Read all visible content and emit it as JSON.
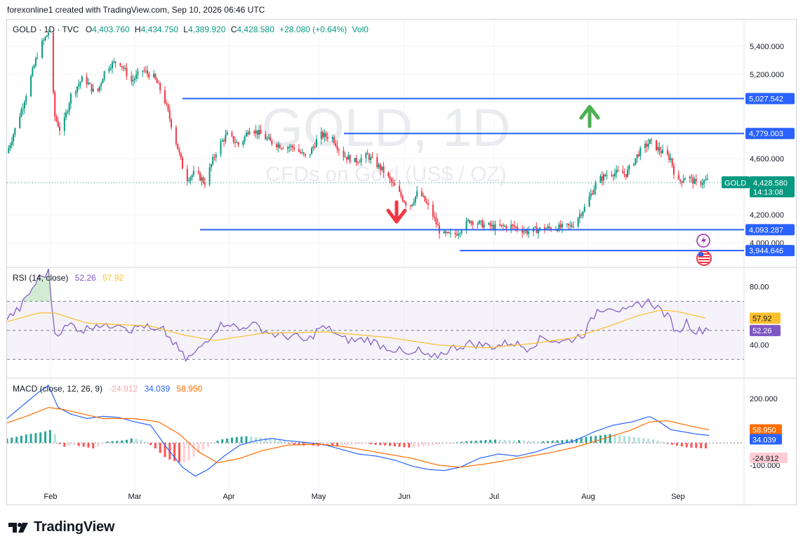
{
  "header": {
    "text": "forexonline1 created with TradingView.com, Sep 10, 2026 06:46 UTC"
  },
  "footer": {
    "brand": "TradingView"
  },
  "watermark": {
    "line1": "GOLD, 1D",
    "line2": "CFDs on Gold (US$ / OZ)"
  },
  "legend": {
    "symbol": "GOLD · 1D · TVC",
    "o_label": "O",
    "o_value": "4,403.760",
    "h_label": "H",
    "h_value": "4,434.750",
    "l_label": "L",
    "l_value": "4,389.920",
    "c_label": "C",
    "c_value": "4,428.580",
    "change": "+28.080 (+0.64%)",
    "vol": "Vol0"
  },
  "colors": {
    "up": "#089981",
    "down": "#f23645",
    "level_line": "#2962ff",
    "rsi": "#7e57c2",
    "rsi_ma": "#fbc02d",
    "macd": "#2962ff",
    "signal": "#ff6d00"
  },
  "chart_data": [
    {
      "type": "candlestick",
      "title": "GOLD, 1D",
      "x": [
        "Feb",
        "Mar",
        "Apr",
        "May",
        "Jun",
        "Jul",
        "Aug",
        "Sep"
      ],
      "ylim": [
        3850,
        5550
      ],
      "y_ticks": [
        "5,400.000",
        "5,200.000",
        "4,600.000",
        "4,200.000",
        "4,000.000"
      ],
      "horizontal_levels": [
        {
          "value": 5027.542,
          "label": "5,027.542"
        },
        {
          "value": 4779.003,
          "label": "4,779.003"
        },
        {
          "value": 4093.287,
          "label": "4,093.287"
        },
        {
          "value": 3944.646,
          "label": "3,944.646"
        }
      ],
      "last_price": {
        "symbol": "GOLD",
        "value": "4,428.580",
        "countdown": "14:13:08"
      },
      "annotations": [
        "arrow-up",
        "arrow-down"
      ],
      "close_path": [
        [
          0,
          4640
        ],
        [
          10,
          4980
        ],
        [
          20,
          5380
        ],
        [
          26,
          5500
        ],
        [
          30,
          4900
        ],
        [
          34,
          4780
        ],
        [
          40,
          5050
        ],
        [
          48,
          5180
        ],
        [
          56,
          5050
        ],
        [
          62,
          5250
        ],
        [
          70,
          5300
        ],
        [
          78,
          5150
        ],
        [
          85,
          5230
        ],
        [
          92,
          5180
        ],
        [
          98,
          5050
        ],
        [
          106,
          4720
        ],
        [
          112,
          4450
        ],
        [
          118,
          4500
        ],
        [
          124,
          4430
        ],
        [
          132,
          4680
        ],
        [
          138,
          4770
        ],
        [
          146,
          4690
        ],
        [
          152,
          4820
        ],
        [
          158,
          4780
        ],
        [
          165,
          4720
        ],
        [
          172,
          4690
        ],
        [
          180,
          4680
        ],
        [
          188,
          4600
        ],
        [
          196,
          4770
        ],
        [
          204,
          4750
        ],
        [
          210,
          4630
        ],
        [
          218,
          4580
        ],
        [
          226,
          4620
        ],
        [
          236,
          4510
        ],
        [
          246,
          4350
        ],
        [
          252,
          4250
        ],
        [
          258,
          4370
        ],
        [
          266,
          4220
        ],
        [
          272,
          4060
        ],
        [
          280,
          4050
        ],
        [
          290,
          4160
        ],
        [
          298,
          4130
        ],
        [
          306,
          4110
        ],
        [
          316,
          4120
        ],
        [
          326,
          4080
        ],
        [
          336,
          4100
        ],
        [
          348,
          4110
        ],
        [
          354,
          4120
        ],
        [
          362,
          4250
        ],
        [
          370,
          4440
        ],
        [
          378,
          4500
        ],
        [
          388,
          4490
        ],
        [
          396,
          4640
        ],
        [
          403,
          4720
        ],
        [
          410,
          4650
        ],
        [
          416,
          4600
        ],
        [
          420,
          4420
        ],
        [
          426,
          4480
        ],
        [
          432,
          4420
        ],
        [
          440,
          4450
        ]
      ],
      "session_days": 440
    },
    {
      "type": "line",
      "title": "RSI (14, close)",
      "series": [
        {
          "name": "RSI",
          "last": "52.26"
        },
        {
          "name": "RSI MA",
          "last": "57.92"
        }
      ],
      "ylim": [
        20,
        90
      ],
      "y_ticks": [
        "80.00",
        "40.00"
      ],
      "bands": [
        70,
        50,
        30
      ],
      "rsi_path": [
        [
          0,
          58
        ],
        [
          8,
          65
        ],
        [
          20,
          86
        ],
        [
          26,
          90
        ],
        [
          30,
          48
        ],
        [
          34,
          50
        ],
        [
          40,
          54
        ],
        [
          48,
          50
        ],
        [
          56,
          55
        ],
        [
          62,
          52
        ],
        [
          70,
          56
        ],
        [
          78,
          50
        ],
        [
          85,
          54
        ],
        [
          92,
          49
        ],
        [
          98,
          50
        ],
        [
          106,
          39
        ],
        [
          112,
          30
        ],
        [
          118,
          34
        ],
        [
          124,
          42
        ],
        [
          132,
          52
        ],
        [
          138,
          56
        ],
        [
          146,
          50
        ],
        [
          152,
          55
        ],
        [
          158,
          52
        ],
        [
          165,
          48
        ],
        [
          172,
          46
        ],
        [
          180,
          46
        ],
        [
          188,
          42
        ],
        [
          196,
          52
        ],
        [
          204,
          50
        ],
        [
          210,
          44
        ],
        [
          218,
          43
        ],
        [
          226,
          44
        ],
        [
          236,
          39
        ],
        [
          246,
          36
        ],
        [
          252,
          32
        ],
        [
          258,
          36
        ],
        [
          266,
          30
        ],
        [
          272,
          34
        ],
        [
          280,
          38
        ],
        [
          290,
          41
        ],
        [
          298,
          40
        ],
        [
          306,
          39
        ],
        [
          316,
          42
        ],
        [
          326,
          38
        ],
        [
          336,
          45
        ],
        [
          348,
          42
        ],
        [
          354,
          44
        ],
        [
          362,
          48
        ],
        [
          370,
          64
        ],
        [
          378,
          67
        ],
        [
          388,
          62
        ],
        [
          396,
          68
        ],
        [
          403,
          70
        ],
        [
          410,
          64
        ],
        [
          416,
          57
        ],
        [
          420,
          48
        ],
        [
          426,
          56
        ],
        [
          432,
          49
        ],
        [
          440,
          52
        ]
      ],
      "ma_path": [
        [
          0,
          56
        ],
        [
          20,
          62
        ],
        [
          30,
          62
        ],
        [
          50,
          55
        ],
        [
          90,
          53
        ],
        [
          110,
          47
        ],
        [
          130,
          43
        ],
        [
          160,
          48
        ],
        [
          200,
          49
        ],
        [
          240,
          45
        ],
        [
          270,
          40
        ],
        [
          300,
          38
        ],
        [
          330,
          41
        ],
        [
          355,
          45
        ],
        [
          375,
          52
        ],
        [
          395,
          60
        ],
        [
          410,
          64
        ],
        [
          420,
          63
        ],
        [
          440,
          58
        ]
      ]
    },
    {
      "type": "line",
      "title": "MACD (close, 12, 26, 9)",
      "series": [
        {
          "name": "Histogram",
          "last": "-24.912"
        },
        {
          "name": "MACD",
          "last": "34.039"
        },
        {
          "name": "Signal",
          "last": "58.950"
        }
      ],
      "ylim": [
        -180,
        270
      ],
      "y_ticks": [
        "200.000",
        "-100.000"
      ],
      "macd_path": [
        [
          0,
          110
        ],
        [
          10,
          170
        ],
        [
          20,
          230
        ],
        [
          26,
          260
        ],
        [
          32,
          160
        ],
        [
          40,
          130
        ],
        [
          50,
          110
        ],
        [
          60,
          120
        ],
        [
          70,
          115
        ],
        [
          80,
          95
        ],
        [
          90,
          80
        ],
        [
          100,
          -20
        ],
        [
          110,
          -110
        ],
        [
          118,
          -150
        ],
        [
          126,
          -120
        ],
        [
          136,
          -60
        ],
        [
          146,
          -10
        ],
        [
          156,
          10
        ],
        [
          166,
          20
        ],
        [
          176,
          10
        ],
        [
          190,
          0
        ],
        [
          200,
          -10
        ],
        [
          210,
          -30
        ],
        [
          220,
          -50
        ],
        [
          232,
          -60
        ],
        [
          244,
          -80
        ],
        [
          254,
          -105
        ],
        [
          264,
          -120
        ],
        [
          274,
          -125
        ],
        [
          284,
          -110
        ],
        [
          296,
          -70
        ],
        [
          308,
          -50
        ],
        [
          320,
          -60
        ],
        [
          332,
          -40
        ],
        [
          344,
          -10
        ],
        [
          356,
          10
        ],
        [
          368,
          50
        ],
        [
          380,
          80
        ],
        [
          392,
          95
        ],
        [
          403,
          120
        ],
        [
          410,
          90
        ],
        [
          416,
          60
        ],
        [
          424,
          50
        ],
        [
          432,
          40
        ],
        [
          440,
          34
        ]
      ],
      "signal_path": [
        [
          0,
          90
        ],
        [
          12,
          120
        ],
        [
          26,
          160
        ],
        [
          36,
          150
        ],
        [
          48,
          130
        ],
        [
          60,
          110
        ],
        [
          80,
          110
        ],
        [
          95,
          95
        ],
        [
          108,
          40
        ],
        [
          120,
          -40
        ],
        [
          132,
          -90
        ],
        [
          146,
          -70
        ],
        [
          160,
          -35
        ],
        [
          176,
          -10
        ],
        [
          196,
          -5
        ],
        [
          214,
          -20
        ],
        [
          234,
          -45
        ],
        [
          254,
          -70
        ],
        [
          270,
          -100
        ],
        [
          284,
          -110
        ],
        [
          300,
          -95
        ],
        [
          320,
          -70
        ],
        [
          340,
          -45
        ],
        [
          356,
          -20
        ],
        [
          372,
          15
        ],
        [
          390,
          55
        ],
        [
          403,
          95
        ],
        [
          414,
          100
        ],
        [
          426,
          80
        ],
        [
          440,
          59
        ]
      ],
      "hist": [
        [
          0,
          20
        ],
        [
          4,
          25
        ],
        [
          8,
          30
        ],
        [
          12,
          38
        ],
        [
          16,
          42
        ],
        [
          20,
          46
        ],
        [
          24,
          52
        ],
        [
          28,
          60
        ],
        [
          30,
          40
        ],
        [
          34,
          -20
        ],
        [
          38,
          -15
        ],
        [
          42,
          -10
        ],
        [
          46,
          -15
        ],
        [
          50,
          -20
        ],
        [
          54,
          -25
        ],
        [
          58,
          -15
        ],
        [
          62,
          5
        ],
        [
          66,
          8
        ],
        [
          70,
          10
        ],
        [
          74,
          12
        ],
        [
          78,
          20
        ],
        [
          82,
          18
        ],
        [
          86,
          10
        ],
        [
          90,
          -10
        ],
        [
          94,
          -30
        ],
        [
          98,
          -60
        ],
        [
          102,
          -75
        ],
        [
          106,
          -85
        ],
        [
          110,
          -90
        ],
        [
          114,
          -80
        ],
        [
          118,
          -55
        ],
        [
          122,
          -35
        ],
        [
          126,
          -20
        ],
        [
          130,
          5
        ],
        [
          134,
          15
        ],
        [
          138,
          20
        ],
        [
          142,
          25
        ],
        [
          146,
          28
        ],
        [
          150,
          30
        ],
        [
          154,
          28
        ],
        [
          158,
          25
        ],
        [
          162,
          22
        ],
        [
          166,
          20
        ],
        [
          170,
          15
        ],
        [
          174,
          10
        ],
        [
          178,
          -8
        ],
        [
          182,
          -10
        ],
        [
          186,
          -12
        ],
        [
          190,
          -10
        ],
        [
          194,
          -15
        ],
        [
          198,
          -12
        ],
        [
          202,
          -10
        ],
        [
          206,
          -15
        ],
        [
          210,
          -12
        ],
        [
          214,
          -10
        ],
        [
          218,
          -8
        ],
        [
          222,
          -5
        ],
        [
          226,
          -4
        ],
        [
          230,
          -8
        ],
        [
          234,
          -10
        ],
        [
          238,
          -12
        ],
        [
          242,
          -15
        ],
        [
          246,
          -18
        ],
        [
          250,
          -20
        ],
        [
          254,
          -22
        ],
        [
          258,
          -18
        ],
        [
          262,
          -15
        ],
        [
          266,
          -12
        ],
        [
          270,
          -8
        ],
        [
          274,
          -5
        ],
        [
          278,
          -2
        ],
        [
          282,
          3
        ],
        [
          286,
          6
        ],
        [
          290,
          8
        ],
        [
          294,
          10
        ],
        [
          298,
          12
        ],
        [
          302,
          14
        ],
        [
          306,
          15
        ],
        [
          310,
          14
        ],
        [
          314,
          13
        ],
        [
          318,
          12
        ],
        [
          322,
          12
        ],
        [
          326,
          10
        ],
        [
          330,
          8
        ],
        [
          334,
          6
        ],
        [
          338,
          8
        ],
        [
          342,
          10
        ],
        [
          346,
          12
        ],
        [
          350,
          14
        ],
        [
          354,
          16
        ],
        [
          358,
          20
        ],
        [
          362,
          26
        ],
        [
          366,
          30
        ],
        [
          370,
          32
        ],
        [
          374,
          36
        ],
        [
          378,
          40
        ],
        [
          382,
          36
        ],
        [
          386,
          32
        ],
        [
          390,
          30
        ],
        [
          394,
          26
        ],
        [
          398,
          22
        ],
        [
          402,
          20
        ],
        [
          406,
          14
        ],
        [
          410,
          8
        ],
        [
          414,
          -4
        ],
        [
          418,
          -10
        ],
        [
          422,
          -15
        ],
        [
          426,
          -20
        ],
        [
          430,
          -22
        ],
        [
          434,
          -24
        ],
        [
          438,
          -25
        ]
      ]
    }
  ]
}
